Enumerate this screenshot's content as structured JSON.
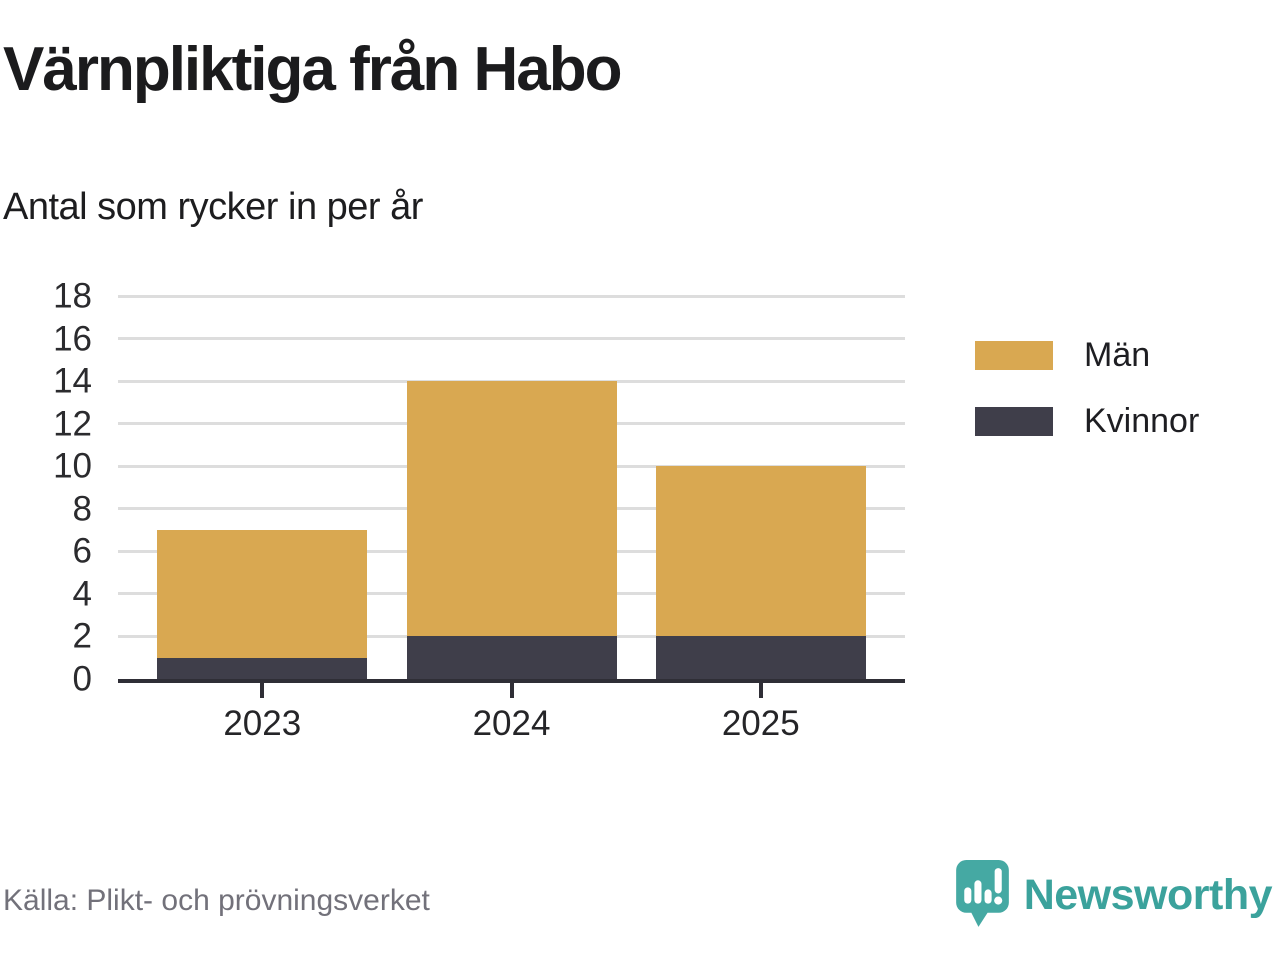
{
  "header": {
    "title": "Värnpliktiga från Habo",
    "subtitle": "Antal som rycker in per år"
  },
  "chart_data": {
    "type": "bar",
    "stacked": true,
    "title": "Värnpliktiga från Habo",
    "subtitle": "Antal som rycker in per år",
    "categories": [
      "2023",
      "2024",
      "2025"
    ],
    "series": [
      {
        "name": "Män",
        "color": "#D9A851",
        "values": [
          6,
          12,
          8
        ]
      },
      {
        "name": "Kvinnor",
        "color": "#3F3E4A",
        "values": [
          1,
          2,
          2
        ]
      }
    ],
    "stack_totals": [
      7,
      14,
      10
    ],
    "ylim": [
      0,
      18
    ],
    "ytick_step": 2,
    "ytick_labels": [
      "0",
      "2",
      "4",
      "6",
      "8",
      "10",
      "12",
      "14",
      "16",
      "18"
    ],
    "grid": true,
    "legend_position": "right"
  },
  "legend": {
    "items": [
      {
        "label": "Män",
        "color": "#D9A851"
      },
      {
        "label": "Kvinnor",
        "color": "#3F3E4A"
      }
    ]
  },
  "footer": {
    "source": "Källa: Plikt- och prövningsverket",
    "brand": "Newsworthy"
  },
  "colors": {
    "bar_men": "#D9A851",
    "bar_women": "#3F3E4A",
    "gridline": "#DDDDDD",
    "axis": "#2F2E36",
    "text": "#1E1E21",
    "source_text": "#72717A",
    "brand_teal": "#3BA29C",
    "logo_teal": "#45A9A3"
  },
  "icons": {
    "brand": "newsworthy-chart-bubble-icon"
  }
}
